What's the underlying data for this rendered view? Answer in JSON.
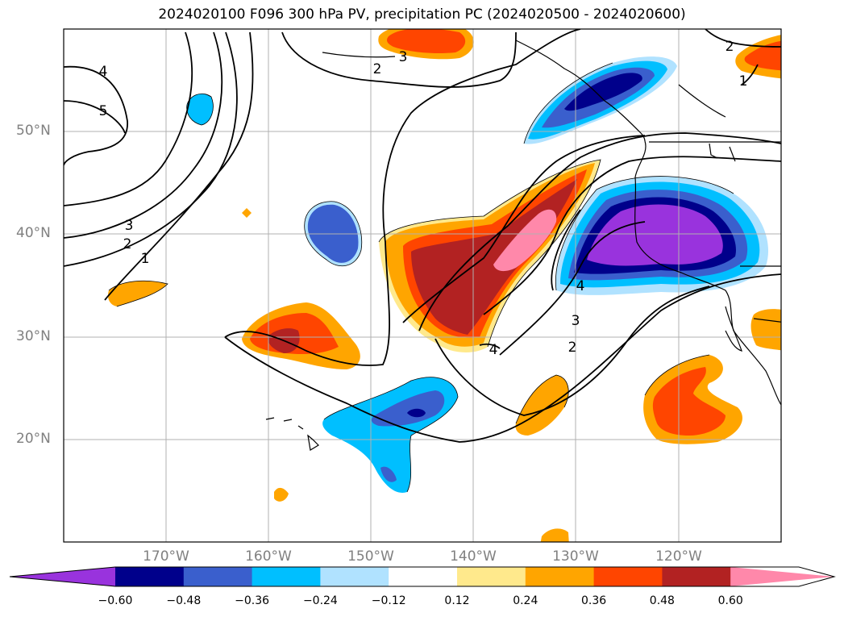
{
  "title": "2024020100 F096 300 hPa PV, precipitation PC (2024020500 - 2024020600)",
  "map": {
    "lon_range": [
      -180,
      -110
    ],
    "lat_range": [
      10,
      60
    ],
    "lat_ticks": [
      {
        "value": 50,
        "label": "50°N"
      },
      {
        "value": 40,
        "label": "40°N"
      },
      {
        "value": 30,
        "label": "30°N"
      },
      {
        "value": 20,
        "label": "20°N"
      }
    ],
    "lon_ticks": [
      {
        "value": -170,
        "label": "170°W"
      },
      {
        "value": -160,
        "label": "160°W"
      },
      {
        "value": -150,
        "label": "150°W"
      },
      {
        "value": -140,
        "label": "140°W"
      },
      {
        "value": -130,
        "label": "130°W"
      },
      {
        "value": -120,
        "label": "120°W"
      }
    ],
    "gridlines": true,
    "contour_labels": [
      "4",
      "5",
      "3",
      "2",
      "1",
      "2",
      "3",
      "2",
      "1",
      "4",
      "3",
      "2",
      "4"
    ]
  },
  "colorbar": {
    "colors": [
      "#9933dd",
      "#00008b",
      "#3a5fcd",
      "#00bfff",
      "#b0e2ff",
      "#ffffff",
      "#ffe98c",
      "#ffa500",
      "#ff4500",
      "#b22222",
      "#ff88aa"
    ],
    "ticks": [
      "−0.60",
      "−0.48",
      "−0.36",
      "−0.24",
      "−0.12",
      "0.12",
      "0.24",
      "0.36",
      "0.48",
      "0.60"
    ]
  }
}
